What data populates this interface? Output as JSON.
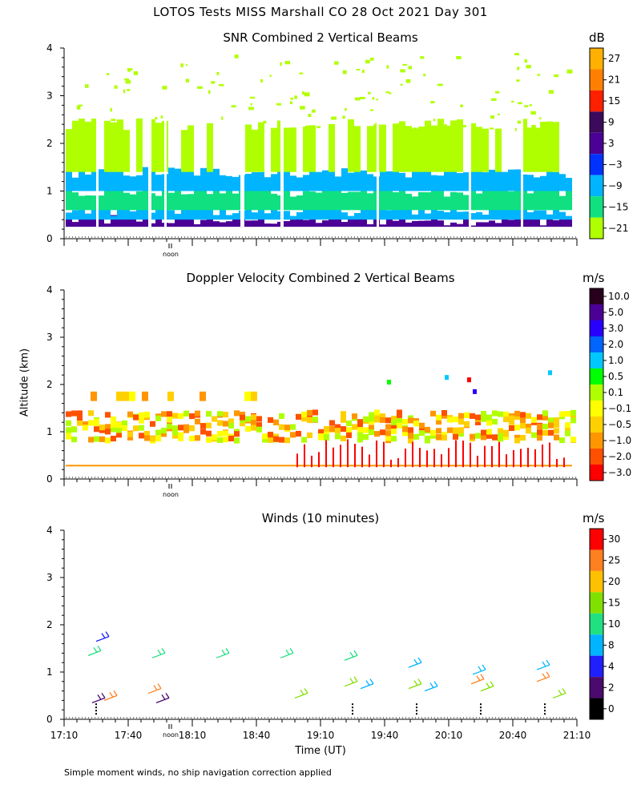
{
  "title": "LOTOS Tests MISS Marshall CO  28 Oct 2021 Day 301",
  "ylabel": "Altitude (km)",
  "xlabel": "Time (UT)",
  "footnote": "Simple moment winds, no ship navigation correction applied",
  "noon_label": "noon",
  "chart_data": [
    {
      "type": "heatmap",
      "title": "SNR Combined 2 Vertical Beams",
      "unit": "dB",
      "ylabel": "Altitude (km)",
      "ylim": [
        0,
        4
      ],
      "y_ticks": [
        "0",
        "1",
        "2",
        "3",
        "4"
      ],
      "xlim": [
        "17:10",
        "21:10"
      ],
      "colorbar": {
        "labels": [
          "27",
          "21",
          "15",
          "9",
          "3",
          "−3",
          "−9",
          "−15",
          "−21"
        ],
        "colors": [
          "#ffb000",
          "#ff8000",
          "#ff2000",
          "#3c0a5a",
          "#4b0096",
          "#0032ff",
          "#00b4ff",
          "#10e080",
          "#b0ff00"
        ]
      },
      "layers": [
        {
          "alt_low": 0.25,
          "alt_high": 0.4,
          "color": "#4b0096"
        },
        {
          "alt_low": 0.4,
          "alt_high": 0.6,
          "color": "#00b4ff"
        },
        {
          "alt_low": 0.6,
          "alt_high": 1.0,
          "color": "#10e080"
        },
        {
          "alt_low": 1.0,
          "alt_high": 1.4,
          "color": "#00b4ff"
        },
        {
          "alt_low": 1.4,
          "alt_high": 2.4,
          "color": "#b0ff00"
        }
      ]
    },
    {
      "type": "heatmap",
      "title": "Doppler Velocity Combined 2 Vertical Beams",
      "unit": "m/s",
      "ylim": [
        0,
        4
      ],
      "y_ticks": [
        "0",
        "1",
        "2",
        "3",
        "4"
      ],
      "xlim": [
        "17:10",
        "21:10"
      ],
      "colorbar": {
        "labels": [
          "10.0",
          "5.0",
          "3.0",
          "2.0",
          "1.0",
          "0.5",
          "0.1",
          "−0.1",
          "−0.5",
          "−1.0",
          "−2.0",
          "−3.0"
        ],
        "colors": [
          "#28001e",
          "#4b0096",
          "#2800ff",
          "#0064ff",
          "#00c8ff",
          "#00ff00",
          "#b0ff00",
          "#ffff00",
          "#ffd000",
          "#ff9600",
          "#ff5000",
          "#ff0000"
        ]
      }
    },
    {
      "type": "wind_barbs",
      "title": "Winds (10 minutes)",
      "unit": "m/s",
      "ylim": [
        0,
        4
      ],
      "y_ticks": [
        "0",
        "1",
        "2",
        "3",
        "4"
      ],
      "x_ticks": [
        "17:10",
        "17:40",
        "18:10",
        "18:40",
        "19:10",
        "19:40",
        "20:10",
        "20:40",
        "21:10"
      ],
      "colorbar": {
        "labels": [
          "30",
          "25",
          "20",
          "15",
          "10",
          "8",
          "4",
          "2",
          "0"
        ],
        "colors": [
          "#ff0000",
          "#ff8020",
          "#ffc000",
          "#80e000",
          "#20e080",
          "#00b4ff",
          "#2020ff",
          "#4b0a6e",
          "#000000"
        ]
      }
    }
  ]
}
